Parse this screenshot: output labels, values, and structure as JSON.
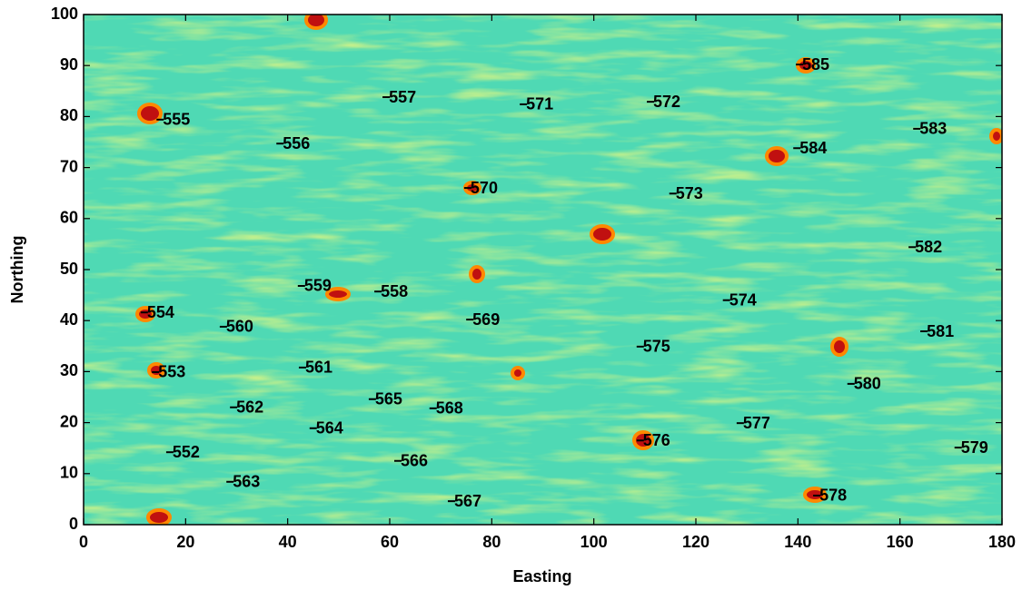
{
  "chart_data": {
    "type": "scatter",
    "xlabel": "Easting",
    "ylabel": "Northing",
    "xlim": [
      0,
      180
    ],
    "ylim": [
      0,
      100
    ],
    "xticks": [
      0,
      20,
      40,
      60,
      80,
      100,
      120,
      140,
      160,
      180
    ],
    "yticks": [
      0,
      10,
      20,
      30,
      40,
      50,
      60,
      70,
      80,
      90,
      100
    ],
    "color": "#000000",
    "labels": [
      "552",
      "553",
      "554",
      "555",
      "556",
      "557",
      "558",
      "559",
      "560",
      "561",
      "562",
      "563",
      "564",
      "565",
      "566",
      "567",
      "568",
      "569",
      "570",
      "571",
      "572",
      "573",
      "574",
      "575",
      "576",
      "577",
      "578",
      "579",
      "580",
      "581",
      "582",
      "583",
      "584",
      "585"
    ],
    "x": [
      16.9,
      14.1,
      11.9,
      15.0,
      38.5,
      59.3,
      57.7,
      42.7,
      27.4,
      42.9,
      29.4,
      28.7,
      45.0,
      56.6,
      61.6,
      72.1,
      68.5,
      75.7,
      75.3,
      86.2,
      111.1,
      115.5,
      126.0,
      109.1,
      109.1,
      128.7,
      143.7,
      171.4,
      150.4,
      164.7,
      162.4,
      163.3,
      139.8,
      140.3
    ],
    "values": [
      14.2,
      29.9,
      41.6,
      79.4,
      74.7,
      83.8,
      45.7,
      46.8,
      38.8,
      30.8,
      23.0,
      8.4,
      18.9,
      24.6,
      12.5,
      4.6,
      22.8,
      40.2,
      66.0,
      82.4,
      82.9,
      64.9,
      44.0,
      34.9,
      16.5,
      19.9,
      5.7,
      15.1,
      27.6,
      37.9,
      54.4,
      77.6,
      73.8,
      90.2
    ]
  }
}
